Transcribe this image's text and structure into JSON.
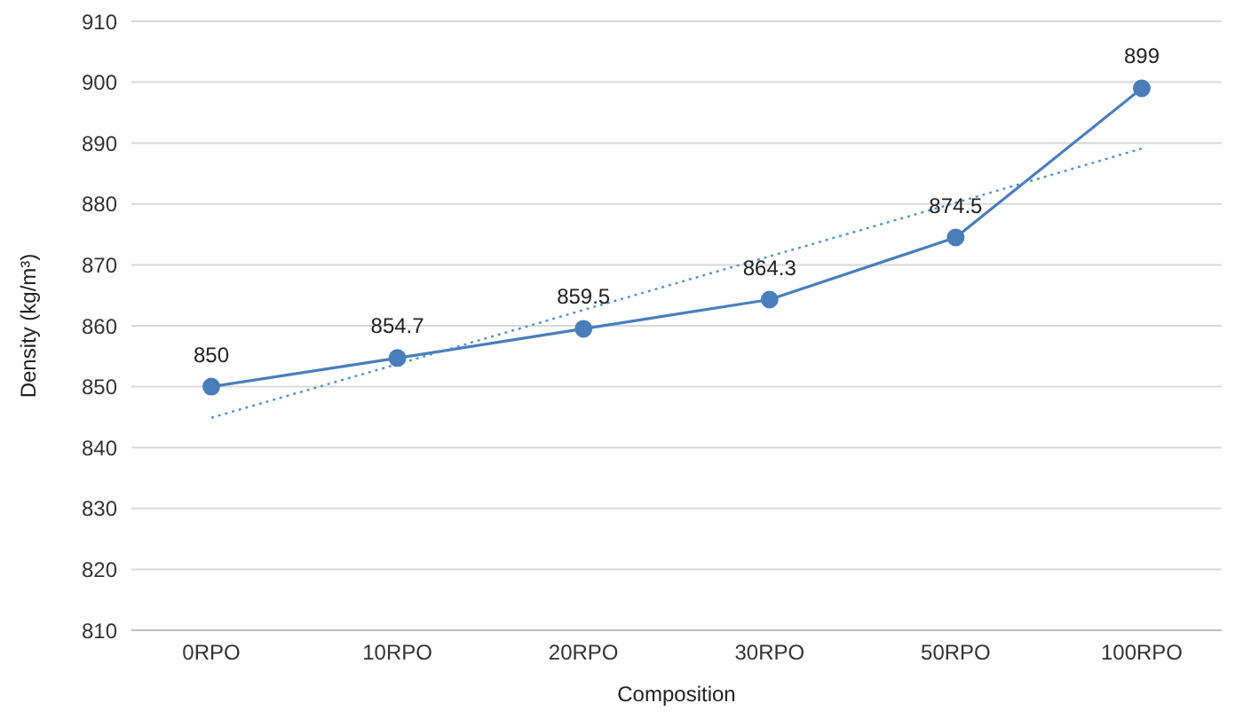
{
  "chart_data": {
    "type": "line",
    "xlabel": "Composition",
    "ylabel": "Density (kg/m³)",
    "categories": [
      "0RPO",
      "10RPO",
      "20RPO",
      "30RPO",
      "50RPO",
      "100RPO"
    ],
    "series": [
      {
        "color": "#4a7ebb",
        "values": [
          850,
          854.7,
          859.5,
          864.3,
          874.5,
          899
        ],
        "value_labels": [
          "850",
          "854.7",
          "859.5",
          "864.3",
          "874.5",
          "899"
        ],
        "marker": "circle",
        "line_style": "solid"
      },
      {
        "color": "#5b8fc7",
        "values": [
          844.9,
          853.7,
          862.6,
          871.4,
          880.2,
          889.1
        ],
        "marker": "none",
        "line_style": "dotted"
      }
    ],
    "ylim": [
      810,
      910
    ],
    "yticks": [
      810,
      820,
      830,
      840,
      850,
      860,
      870,
      880,
      890,
      900,
      910
    ],
    "grid": "y"
  }
}
